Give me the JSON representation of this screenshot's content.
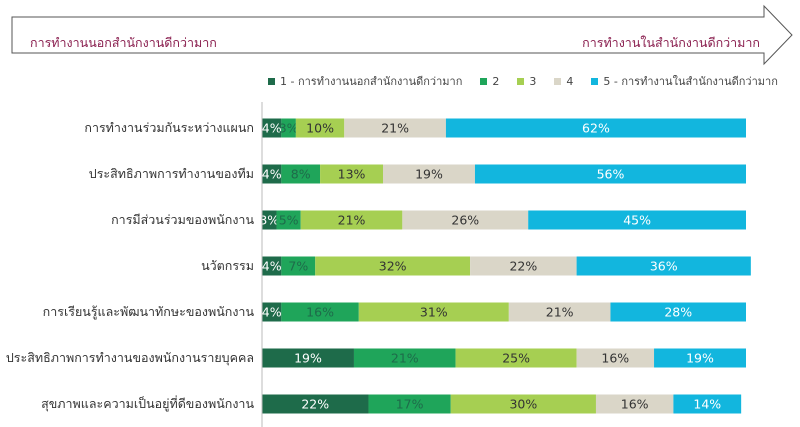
{
  "header_arrow": {
    "left_label": "การทำงานนอกสำนักงานดีกว่ามาก",
    "right_label": "การทำงานในสำนักงานดีกว่ามาก"
  },
  "chart_data": {
    "type": "bar",
    "orientation": "horizontal",
    "stacked": true,
    "stack_total": 100,
    "categories": [
      "การทำงานร่วมกันระหว่างแผนก",
      "ประสิทธิภาพการทำงานของทีม",
      "การมีส่วนร่วมของพนักงาน",
      "นวัตกรรม",
      "การเรียนรู้และพัฒนาทักษะของพนักงาน",
      "ประสิทธิภาพการทำงานของพนักงานรายบุคคล",
      "สุขภาพและความเป็นอยู่ที่ดีของพนักงาน"
    ],
    "series": [
      {
        "name": "1 -  การทำงานนอกสำนักงานดีกว่ามาก",
        "color": "#1e6b4a",
        "label_color": "#ffffff",
        "values": [
          4,
          4,
          3,
          4,
          4,
          19,
          22
        ],
        "labels": [
          "4%",
          "4%",
          "3%",
          "4%",
          "4%",
          "19%",
          "22%"
        ]
      },
      {
        "name": "2",
        "color": "#1fa55a",
        "label_color": "#1e6b4a",
        "values": [
          3,
          8,
          5,
          7,
          16,
          21,
          17
        ],
        "labels": [
          "3%",
          "8%",
          "5%",
          "7%",
          "16%",
          "21%",
          "17%"
        ]
      },
      {
        "name": "3",
        "color": "#a6cf52",
        "label_color": "#333333",
        "values": [
          10,
          13,
          21,
          32,
          31,
          25,
          30
        ],
        "labels": [
          "10%",
          "13%",
          "21%",
          "32%",
          "31%",
          "25%",
          "30%"
        ]
      },
      {
        "name": "4",
        "color": "#dad6c8",
        "label_color": "#333333",
        "values": [
          21,
          19,
          26,
          22,
          21,
          16,
          16
        ],
        "labels": [
          "21%",
          "19%",
          "26%",
          "22%",
          "21%",
          "16%",
          "16%"
        ]
      },
      {
        "name": "5 -  การทำงานในสำนักงานดีกว่ามาก",
        "color": "#12b6de",
        "label_color": "#ffffff",
        "values": [
          62,
          56,
          45,
          36,
          28,
          19,
          14
        ],
        "labels": [
          "62%",
          "56%",
          "45%",
          "36%",
          "28%",
          "19%",
          "14%"
        ]
      }
    ],
    "legend": "top"
  }
}
